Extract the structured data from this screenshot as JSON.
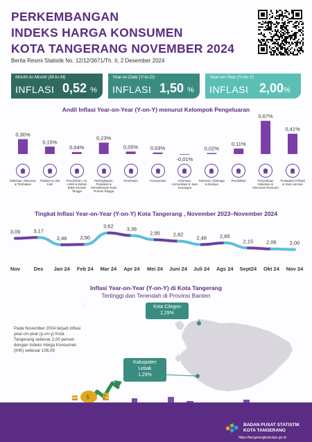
{
  "header": {
    "title_line1": "PERKEMBANGAN",
    "title_line2": "INDEKS HARGA KONSUMEN",
    "title_line3": "KOTA TANGERANG NOVEMBER 2024",
    "brs": "Berita Resmi Statistik No. 12/12/3671/Th. II, 2 Desember 2024"
  },
  "cards": [
    {
      "caption": "Month-to-Month (M-to-M)",
      "label": "INFLASI",
      "value": "0,52",
      "unit": "%",
      "color": "#2e6b5e"
    },
    {
      "caption": "Year-to-Date (Y-to-D)",
      "label": "INFLASI",
      "value": "1,50",
      "unit": "%",
      "color": "#3a8c80"
    },
    {
      "caption": "Year-on-Year (Y-on-Y)",
      "label": "INFLASI",
      "value": "2,00",
      "unit": "%",
      "color": "#5bbfb5"
    }
  ],
  "sections": {
    "andil_title": "Andil Inflasi Year-on-Year (Y-on-Y) menurut Kelompok Pengeluaran",
    "trend_title": "Tingkat Inflasi Year-on-Year (Y-on-Y) Kota Tangerang , November 2023–November 2024",
    "map_title_line1": "Inflasi Year-on-Year (Y-on-Y) di Kota Tangerang",
    "map_title_line2": "Tertinggi dan Terendah di Provinsi Banten"
  },
  "chart_data": [
    {
      "type": "bar",
      "categories": [
        "Makanan, Minuman & Tembakau",
        "Pakaian & Alas Kaki",
        "Perumahan, Air, Listrik & Bahan Bakar Rumah Tangga",
        "Perlengkapan, Peralatan & Pemeliharaan Rutin Rumah Tangga",
        "Kesehatan",
        "Transportasi",
        "Informasi, Komunikasi & Jasa Keuangan",
        "Rekreasi, Olahraga & Budaya",
        "Pendidikan",
        "Penyediaan Makanan & Minuman/ Restoran",
        "Perawatan Pribadi & Jasa Lainnya"
      ],
      "values": [
        0.3,
        0.15,
        0.04,
        0.23,
        0.05,
        0.03,
        -0.01,
        0.02,
        0.11,
        0.67,
        0.41
      ],
      "value_labels": [
        "0,30%",
        "0,15%",
        "0,04%",
        "0,23%",
        "0,05%",
        "0,03%",
        "-0,01%",
        "0,02%",
        "0,11%",
        "0,67%",
        "0,41%"
      ],
      "icons": [
        "food-icon",
        "clothes-icon",
        "house-icon",
        "household-icon",
        "health-icon",
        "transport-icon",
        "phone-icon",
        "sport-icon",
        "education-icon",
        "restaurant-icon",
        "tools-icon"
      ],
      "ylim": [
        -0.02,
        0.7
      ],
      "bar_color": "#7b3fa8"
    },
    {
      "type": "line",
      "categories": [
        "Nov",
        "Des",
        "Jan 24",
        "Feb 24",
        "Mar 24",
        "Apr 24",
        "Mei 24",
        "Juni 24",
        "Juli 24",
        "Ags 24",
        "Sept24",
        "Okt 24",
        "Nov 24"
      ],
      "values": [
        3.09,
        3.17,
        2.46,
        2.5,
        3.62,
        3.36,
        2.95,
        2.82,
        2.48,
        2.65,
        2.15,
        2.06,
        2.0
      ],
      "value_labels": [
        "3,09",
        "3,17",
        "2,46",
        "2,50",
        "3,62",
        "3,36",
        "2,95",
        "2,82",
        "2,48",
        "2,65",
        "2,15",
        "2,06",
        "2,00"
      ],
      "ylim": [
        1.5,
        4.0
      ],
      "line_colors": [
        "#6b3fa0",
        "#5bc0d8"
      ]
    }
  ],
  "map": {
    "highest": {
      "name": "Kota Cilegon",
      "value": "2,29%"
    },
    "lowest": {
      "name_line1": "Kabupaten",
      "name_line2": "Lebak",
      "value": "1,29%"
    },
    "callout_color": "#3a8c80"
  },
  "note": "Pada November 2024 terjadi inflasi year-on-year (y-on-y) Kota Tangerang sebesar 2,00 persen dengan Indeks Harga Konsumen (IHK) sebesar 106,09",
  "footer": {
    "org_line1": "BADAN PUSAT STATISTIK",
    "org_line2": "KOTA TANGERANG",
    "url": "https://tangerangkota.bps.go.id"
  }
}
